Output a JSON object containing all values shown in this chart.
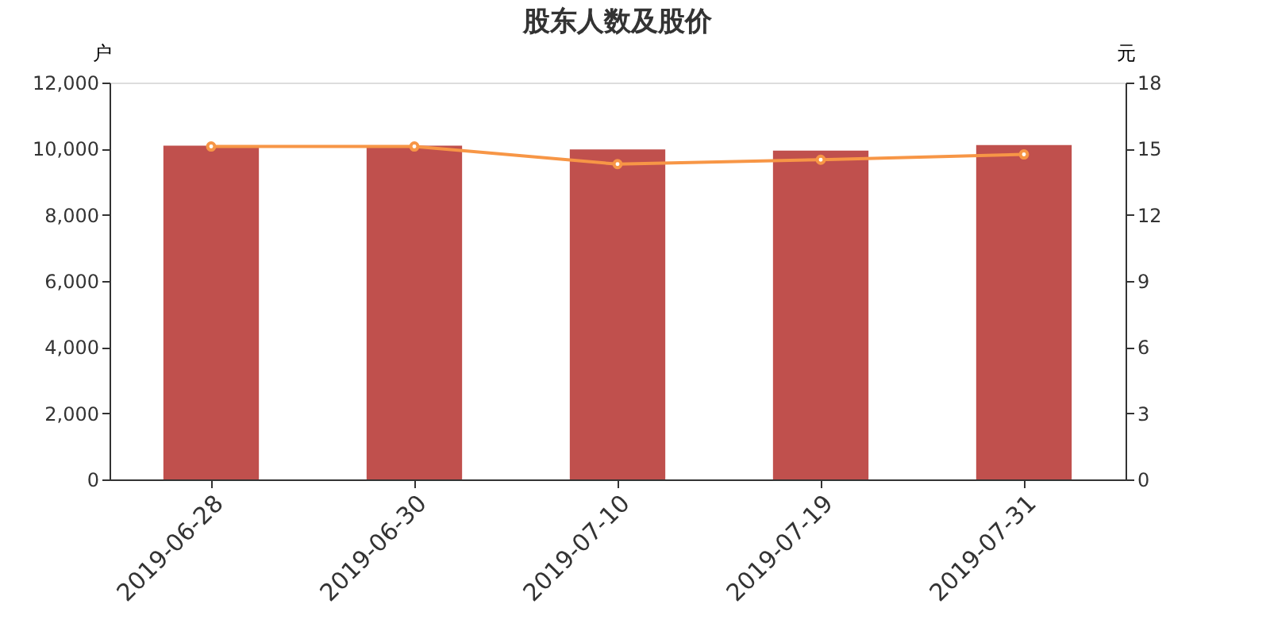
{
  "chart_data": {
    "type": "bar",
    "title": "股东人数及股价",
    "ylabel": "户",
    "y2label": "元",
    "categories": [
      "2019-06-28",
      "2019-06-30",
      "2019-07-10",
      "2019-07-19",
      "2019-07-31"
    ],
    "series": [
      {
        "color": "#c0504d",
        "values": [
          10090,
          10090,
          9980,
          9940,
          10110
        ]
      },
      {
        "type": "line",
        "axis": "y2",
        "color": "#f79646",
        "marker": "circle",
        "values": [
          15.1,
          15.1,
          14.3,
          14.5,
          14.74
        ]
      }
    ],
    "ylim": [
      0,
      12000
    ],
    "yticks": [
      0,
      {
        "value": 2000,
        "label": "2,000"
      },
      {
        "value": 4000,
        "label": "4,000"
      },
      {
        "value": 6000,
        "label": "6,000"
      },
      {
        "value": 8000,
        "label": "8,000"
      },
      {
        "value": 10000,
        "label": "10,000"
      },
      {
        "value": 12000,
        "label": "12,000"
      }
    ],
    "y2lim": [
      0,
      18
    ],
    "y2ticks": [
      0,
      3,
      6,
      9,
      12,
      15,
      18
    ],
    "grid": false
  }
}
